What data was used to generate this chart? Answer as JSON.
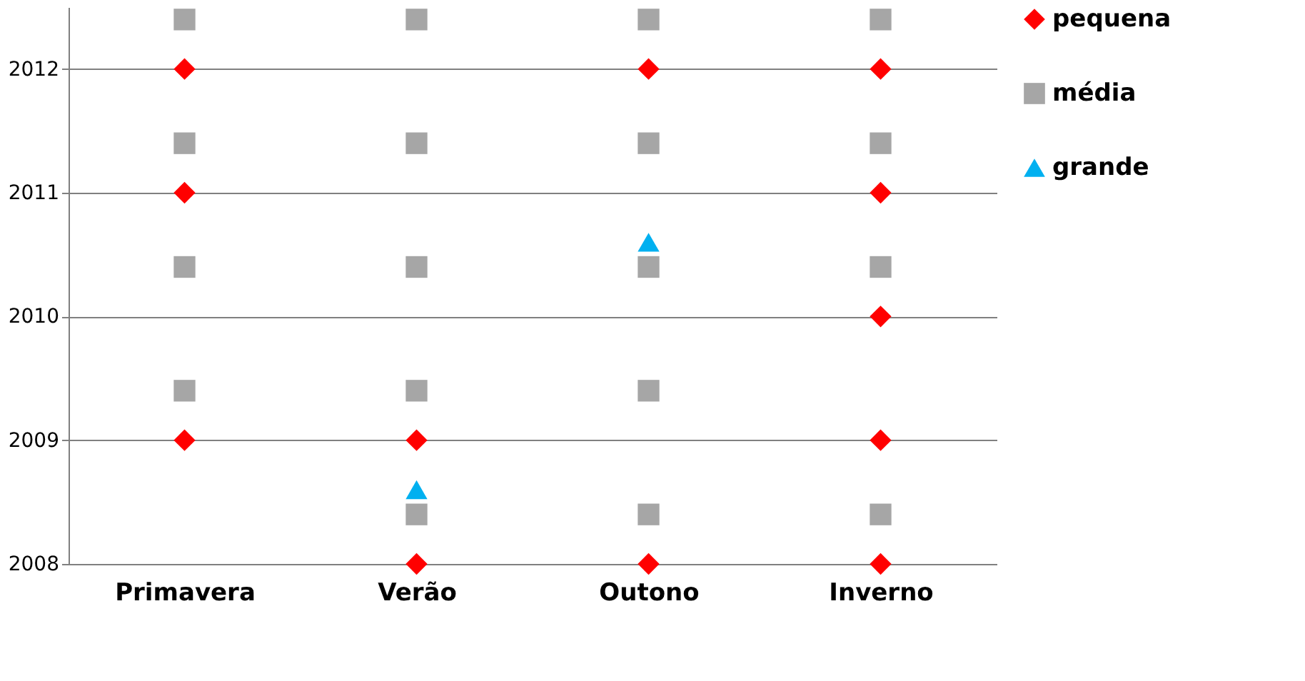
{
  "chart_data": {
    "type": "scatter",
    "categories": [
      "Primavera",
      "Verão",
      "Outono",
      "Inverno"
    ],
    "ylim": [
      2008,
      2012.5
    ],
    "yticks": [
      2008,
      2009,
      2010,
      2011,
      2012
    ],
    "grid": "y",
    "legend": "right",
    "series": [
      {
        "name": "pequena",
        "color": "#ff0000",
        "marker": "diamond",
        "x": [
          "Primavera",
          "Primavera",
          "Primavera",
          "Verão",
          "Verão",
          "Outono",
          "Outono",
          "Inverno",
          "Inverno",
          "Inverno",
          "Inverno",
          "Inverno"
        ],
        "values": [
          2012,
          2011,
          2009,
          2009,
          2008,
          2012,
          2008,
          2012,
          2011,
          2010,
          2009,
          2008
        ]
      },
      {
        "name": "média",
        "color": "#a6a6a6",
        "marker": "square",
        "x": [
          "Primavera",
          "Primavera",
          "Primavera",
          "Primavera",
          "Verão",
          "Verão",
          "Verão",
          "Verão",
          "Verão",
          "Outono",
          "Outono",
          "Outono",
          "Outono",
          "Outono",
          "Inverno",
          "Inverno",
          "Inverno",
          "Inverno"
        ],
        "values": [
          2012.4,
          2011.4,
          2010.4,
          2009.4,
          2012.4,
          2011.4,
          2010.4,
          2009.4,
          2008.4,
          2012.4,
          2011.4,
          2010.4,
          2009.4,
          2008.4,
          2012.4,
          2011.4,
          2010.4,
          2008.4
        ]
      },
      {
        "name": "grande",
        "color": "#00b0f0",
        "marker": "triangle",
        "x": [
          "Verão",
          "Outono"
        ],
        "values": [
          2008.6,
          2010.6
        ]
      }
    ]
  }
}
